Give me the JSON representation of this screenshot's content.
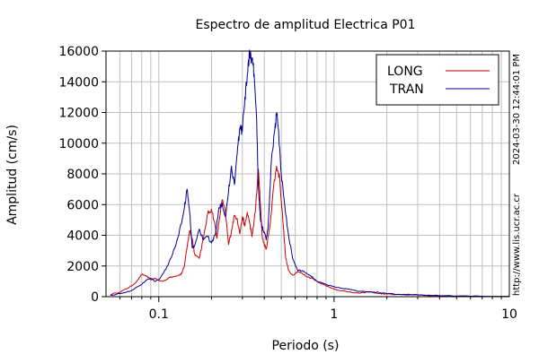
{
  "chart_data": {
    "type": "line",
    "title": "Espectro de amplitud Electrica P01",
    "xlabel": "Periodo (s)",
    "ylabel": "Amplitud (cm/s)",
    "xscale": "log",
    "xlim": [
      0.05,
      10
    ],
    "ylim": [
      0,
      16000
    ],
    "x_ticks": [
      {
        "value": 0.1,
        "label": "0.1"
      },
      {
        "value": 1,
        "label": "1"
      },
      {
        "value": 10,
        "label": "10"
      }
    ],
    "y_ticks": [
      {
        "value": 0,
        "label": "0"
      },
      {
        "value": 2000,
        "label": "2000"
      },
      {
        "value": 4000,
        "label": "4000"
      },
      {
        "value": 6000,
        "label": "6000"
      },
      {
        "value": 8000,
        "label": "8000"
      },
      {
        "value": 10000,
        "label": "10000"
      },
      {
        "value": 12000,
        "label": "12000"
      },
      {
        "value": 14000,
        "label": "14000"
      },
      {
        "value": 16000,
        "label": "16000"
      }
    ],
    "grid": true,
    "legend_position": "top-right",
    "series": [
      {
        "name": "LONG",
        "color": "#cc0000",
        "points": [
          [
            0.053,
            150
          ],
          [
            0.06,
            300
          ],
          [
            0.065,
            500
          ],
          [
            0.07,
            700
          ],
          [
            0.075,
            1000
          ],
          [
            0.08,
            1450
          ],
          [
            0.085,
            1350
          ],
          [
            0.09,
            1100
          ],
          [
            0.095,
            1200
          ],
          [
            0.1,
            1050
          ],
          [
            0.105,
            1000
          ],
          [
            0.11,
            1100
          ],
          [
            0.115,
            1250
          ],
          [
            0.12,
            1300
          ],
          [
            0.13,
            1400
          ],
          [
            0.135,
            1500
          ],
          [
            0.14,
            2000
          ],
          [
            0.145,
            3200
          ],
          [
            0.15,
            4300
          ],
          [
            0.155,
            3800
          ],
          [
            0.16,
            2800
          ],
          [
            0.17,
            2500
          ],
          [
            0.18,
            3800
          ],
          [
            0.19,
            5400
          ],
          [
            0.2,
            5700
          ],
          [
            0.21,
            4600
          ],
          [
            0.215,
            3800
          ],
          [
            0.22,
            4800
          ],
          [
            0.23,
            6300
          ],
          [
            0.24,
            5500
          ],
          [
            0.25,
            3400
          ],
          [
            0.26,
            4300
          ],
          [
            0.27,
            5300
          ],
          [
            0.28,
            5100
          ],
          [
            0.29,
            4100
          ],
          [
            0.3,
            5200
          ],
          [
            0.31,
            4600
          ],
          [
            0.32,
            5500
          ],
          [
            0.33,
            4800
          ],
          [
            0.34,
            3900
          ],
          [
            0.355,
            5500
          ],
          [
            0.37,
            8300
          ],
          [
            0.38,
            6000
          ],
          [
            0.39,
            3800
          ],
          [
            0.4,
            3400
          ],
          [
            0.41,
            3100
          ],
          [
            0.43,
            4500
          ],
          [
            0.45,
            7000
          ],
          [
            0.47,
            8500
          ],
          [
            0.49,
            7700
          ],
          [
            0.51,
            5000
          ],
          [
            0.53,
            2500
          ],
          [
            0.55,
            1700
          ],
          [
            0.58,
            1400
          ],
          [
            0.62,
            1650
          ],
          [
            0.66,
            1500
          ],
          [
            0.7,
            1300
          ],
          [
            0.75,
            1200
          ],
          [
            0.8,
            1000
          ],
          [
            0.9,
            700
          ],
          [
            1.0,
            500
          ],
          [
            1.2,
            300
          ],
          [
            1.4,
            220
          ],
          [
            1.6,
            330
          ],
          [
            1.8,
            200
          ],
          [
            2.0,
            170
          ],
          [
            2.5,
            120
          ],
          [
            3.0,
            100
          ],
          [
            4.0,
            50
          ],
          [
            6.0,
            25
          ],
          [
            10,
            10
          ]
        ]
      },
      {
        "name": "TRAN",
        "color": "#000099",
        "points": [
          [
            0.053,
            100
          ],
          [
            0.06,
            200
          ],
          [
            0.07,
            400
          ],
          [
            0.08,
            800
          ],
          [
            0.085,
            1100
          ],
          [
            0.09,
            1200
          ],
          [
            0.095,
            1000
          ],
          [
            0.1,
            1100
          ],
          [
            0.11,
            1800
          ],
          [
            0.12,
            2800
          ],
          [
            0.13,
            4000
          ],
          [
            0.14,
            5800
          ],
          [
            0.145,
            7000
          ],
          [
            0.15,
            5500
          ],
          [
            0.155,
            3200
          ],
          [
            0.16,
            3300
          ],
          [
            0.17,
            4400
          ],
          [
            0.18,
            3700
          ],
          [
            0.19,
            3900
          ],
          [
            0.2,
            3500
          ],
          [
            0.21,
            4000
          ],
          [
            0.22,
            5800
          ],
          [
            0.23,
            6100
          ],
          [
            0.24,
            5200
          ],
          [
            0.25,
            6800
          ],
          [
            0.26,
            8500
          ],
          [
            0.27,
            7300
          ],
          [
            0.28,
            9300
          ],
          [
            0.29,
            11000
          ],
          [
            0.3,
            10800
          ],
          [
            0.31,
            13000
          ],
          [
            0.32,
            14500
          ],
          [
            0.33,
            15900
          ],
          [
            0.34,
            15500
          ],
          [
            0.35,
            14500
          ],
          [
            0.36,
            12000
          ],
          [
            0.37,
            7200
          ],
          [
            0.38,
            5000
          ],
          [
            0.39,
            4500
          ],
          [
            0.4,
            4200
          ],
          [
            0.41,
            3700
          ],
          [
            0.42,
            4500
          ],
          [
            0.44,
            9000
          ],
          [
            0.46,
            11000
          ],
          [
            0.47,
            12000
          ],
          [
            0.48,
            11000
          ],
          [
            0.5,
            8000
          ],
          [
            0.52,
            6200
          ],
          [
            0.55,
            4000
          ],
          [
            0.58,
            2500
          ],
          [
            0.62,
            1700
          ],
          [
            0.66,
            1700
          ],
          [
            0.7,
            1500
          ],
          [
            0.75,
            1300
          ],
          [
            0.8,
            1000
          ],
          [
            0.9,
            800
          ],
          [
            1.0,
            650
          ],
          [
            1.2,
            500
          ],
          [
            1.4,
            350
          ],
          [
            1.6,
            300
          ],
          [
            1.8,
            280
          ],
          [
            2.0,
            200
          ],
          [
            2.5,
            150
          ],
          [
            3.0,
            120
          ],
          [
            4.0,
            60
          ],
          [
            6.0,
            30
          ],
          [
            10,
            15
          ]
        ]
      }
    ]
  },
  "side_texts": {
    "timestamp": "2024-03-30 12:44:01 PM",
    "url": "http://www.lis.ucr.ac.cr"
  }
}
